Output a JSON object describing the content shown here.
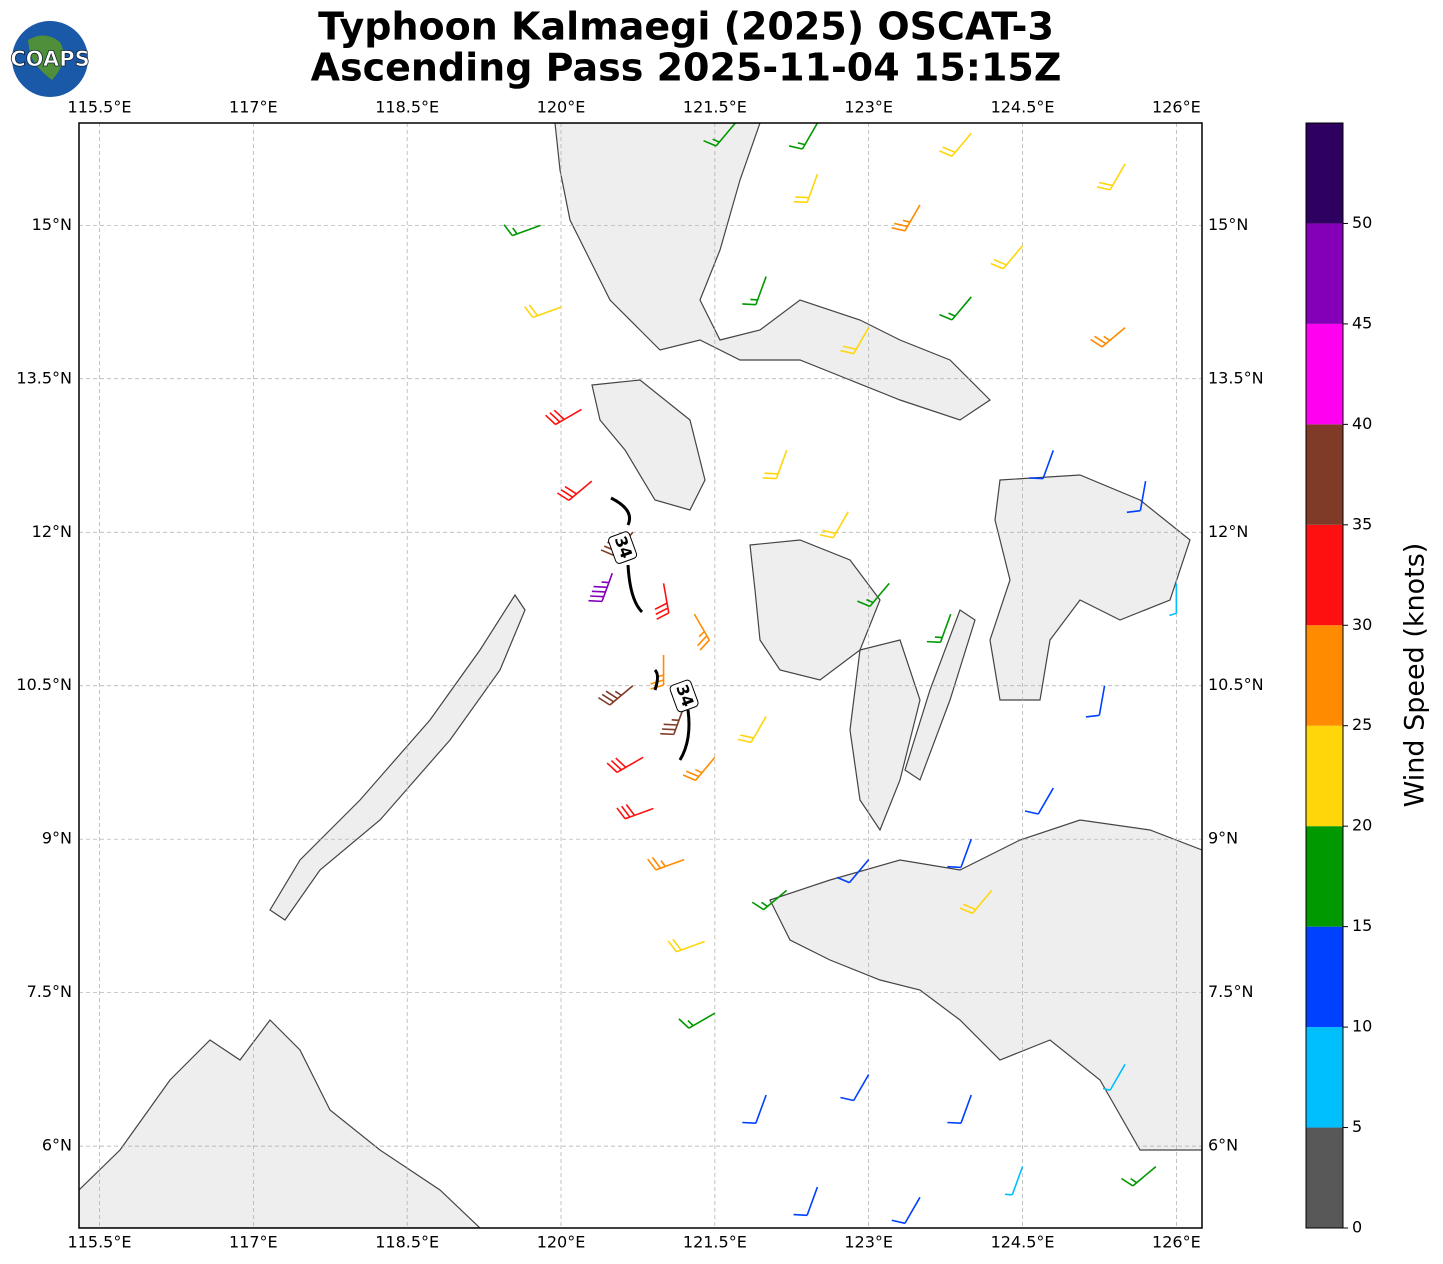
{
  "chart_data": {
    "type": "barbs",
    "logo": "COAPS",
    "title": "Typhoon Kalmaegi (2025) OSCAT-3",
    "subtitle": "Ascending Pass 2025-11-04 15:15Z",
    "xlim": [
      115.3,
      126.25
    ],
    "ylim": [
      5.2,
      16.0
    ],
    "xticks": [
      {
        "value": 115.5,
        "label": "115.5°E"
      },
      {
        "value": 117,
        "label": "117°E"
      },
      {
        "value": 118.5,
        "label": "118.5°E"
      },
      {
        "value": 120,
        "label": "120°E"
      },
      {
        "value": 121.5,
        "label": "121.5°E"
      },
      {
        "value": 123,
        "label": "123°E"
      },
      {
        "value": 124.5,
        "label": "124.5°E"
      },
      {
        "value": 126,
        "label": "126°E"
      }
    ],
    "yticks": [
      {
        "value": 6,
        "label": "6°N"
      },
      {
        "value": 7.5,
        "label": "7.5°N"
      },
      {
        "value": 9,
        "label": "9°N"
      },
      {
        "value": 10.5,
        "label": "10.5°N"
      },
      {
        "value": 12,
        "label": "12°N"
      },
      {
        "value": 13.5,
        "label": "13.5°N"
      },
      {
        "value": 15,
        "label": "15°N"
      }
    ],
    "grid": true,
    "colorbar": {
      "label": "Wind Speed (knots)",
      "lim": [
        0,
        55
      ],
      "bounds": [
        0,
        5,
        10,
        15,
        20,
        25,
        30,
        35,
        40,
        45,
        50,
        55
      ],
      "colors": [
        "#585858",
        "#00bfff",
        "#0040ff",
        "#009900",
        "#ffd60a",
        "#ff8c00",
        "#ff1010",
        "#7f3b28",
        "#ff00f0",
        "#8400b8",
        "#2e0060"
      ],
      "ticks": [
        0,
        5,
        10,
        15,
        20,
        25,
        30,
        35,
        40,
        45,
        50
      ]
    },
    "contour_labels": [
      {
        "text": "34",
        "lon": 120.6,
        "lat": 11.85
      },
      {
        "text": "34",
        "lon": 121.2,
        "lat": 10.4
      }
    ],
    "barbs": {
      "lon": [
        122.5,
        123.5,
        124.5,
        125.5,
        122,
        123,
        124,
        125.5,
        124.8,
        125.7,
        126,
        125.3,
        119.8,
        120,
        120.2,
        120.3,
        120.7,
        120.5,
        121,
        121.3,
        121,
        120.7,
        121.2,
        120.8,
        120.9,
        121.5,
        122,
        122.2,
        122.8,
        123.2,
        123.8,
        121.2,
        121.4,
        121.5,
        122.2,
        123,
        124,
        124.8,
        124.2,
        122,
        123,
        124,
        122.5,
        123.5,
        124.5,
        125.8,
        125.5,
        121.7,
        122.5,
        124
      ],
      "lat": [
        15.5,
        15.2,
        14.8,
        15.6,
        14.5,
        14,
        14.3,
        14,
        12.8,
        12.5,
        11.5,
        10.5,
        15,
        14.2,
        13.2,
        12.5,
        12,
        11.6,
        11.5,
        11.2,
        10.8,
        10.5,
        10.3,
        9.8,
        9.3,
        9.8,
        10.2,
        12.8,
        12.2,
        11.5,
        11.2,
        8.8,
        8,
        7.3,
        8.5,
        8.8,
        9,
        9.5,
        8.5,
        6.5,
        6.7,
        6.5,
        5.6,
        5.5,
        5.8,
        5.8,
        6.8,
        16,
        16,
        15.9
      ],
      "speed": [
        20,
        25,
        20,
        20,
        15,
        20,
        15,
        25,
        10,
        10,
        5,
        10,
        15,
        20,
        30,
        30,
        35,
        45,
        30,
        25,
        25,
        35,
        35,
        30,
        30,
        25,
        20,
        20,
        20,
        15,
        15,
        25,
        20,
        15,
        15,
        10,
        10,
        10,
        20,
        10,
        10,
        10,
        10,
        10,
        5,
        15,
        5,
        15,
        15,
        20
      ],
      "direction": [
        200,
        210,
        220,
        210,
        200,
        210,
        220,
        230,
        200,
        190,
        180,
        190,
        250,
        250,
        240,
        230,
        220,
        200,
        170,
        150,
        180,
        230,
        200,
        240,
        250,
        220,
        210,
        200,
        210,
        220,
        200,
        250,
        250,
        240,
        230,
        220,
        200,
        210,
        220,
        200,
        210,
        200,
        200,
        210,
        200,
        230,
        210,
        220,
        210,
        220
      ]
    }
  }
}
